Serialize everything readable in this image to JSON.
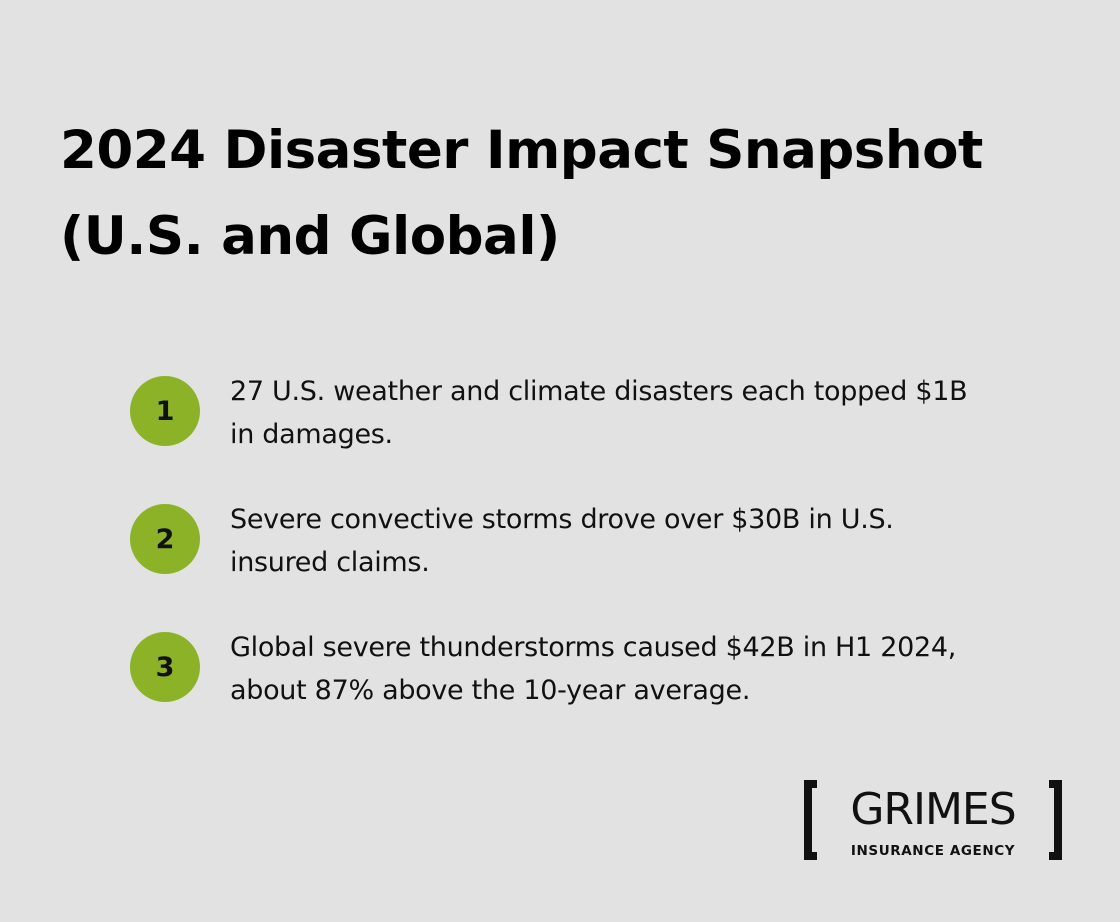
{
  "title": {
    "line1": "2024 Disaster Impact Snapshot",
    "line2": "(U.S. and Global)"
  },
  "items": [
    {
      "number": "1",
      "line1": "27 U.S. weather and climate disasters each topped $1B",
      "line2": "in damages."
    },
    {
      "number": "2",
      "line1": "Severe convective storms drove over $30B in U.S.",
      "line2": "insured claims."
    },
    {
      "number": "3",
      "line1": "Global severe thunderstorms caused $42B in H1 2024,",
      "line2": "about 87% above the 10-year average."
    }
  ],
  "logo": {
    "name": "GRIMES",
    "tagline": "INSURANCE AGENCY"
  },
  "colors": {
    "background": "#e1e2e1",
    "badge": "#8cb327",
    "text": "#111111"
  }
}
